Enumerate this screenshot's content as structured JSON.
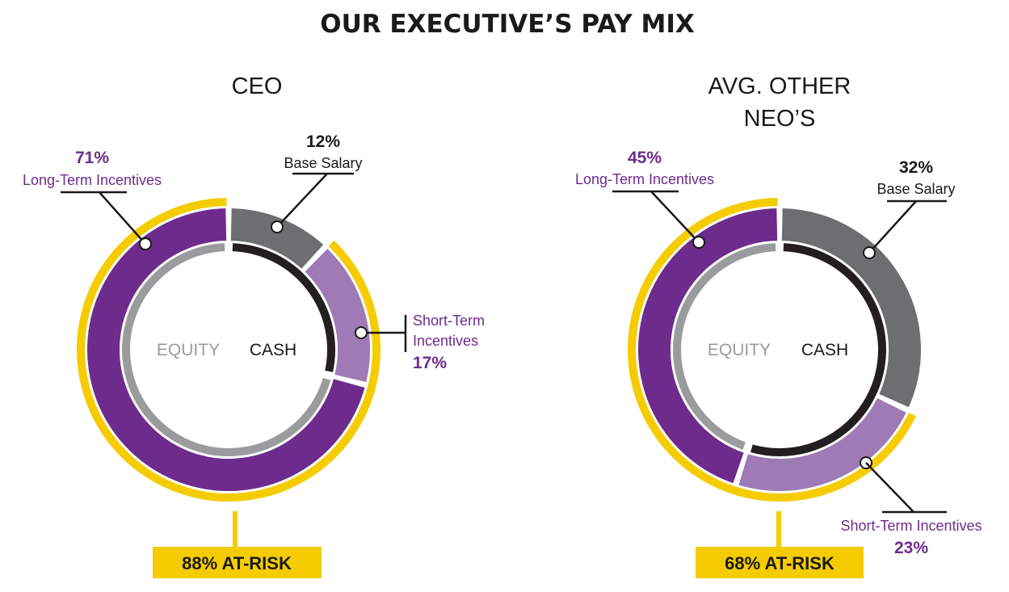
{
  "title": "OUR EXECUTIVE’S PAY MIX",
  "colors": {
    "ltiPurple": "#6d2c8c",
    "stiPurple": "#9e7bb5",
    "baseGray": "#6d6e70",
    "equityGray": "#9a9b9d",
    "cashBlack": "#231f20",
    "atRiskYellow": "#f5cc00",
    "labelPurple": "#6d2c8c"
  },
  "chart_data": [
    {
      "type": "pie",
      "title": "CEO",
      "outer_ring": [
        {
          "label": "Base Salary",
          "value": 12,
          "display": "12%"
        },
        {
          "label_lines": [
            "Short-Term",
            "Incentives"
          ],
          "value": 17,
          "display": "17%"
        },
        {
          "label": "Long-Term Incentives",
          "value": 71,
          "display": "71%"
        }
      ],
      "inner_ring": [
        {
          "label": "CASH",
          "value": 29
        },
        {
          "label": "EQUITY",
          "value": 71
        }
      ],
      "at_risk": {
        "value": 88,
        "label": "88% AT-RISK"
      }
    },
    {
      "type": "pie",
      "title_lines": [
        "AVG. OTHER",
        "NEO’S"
      ],
      "outer_ring": [
        {
          "label": "Base Salary",
          "value": 32,
          "display": "32%"
        },
        {
          "label": "Short-Term Incentives",
          "value": 23,
          "display": "23%"
        },
        {
          "label": "Long-Term Incentives",
          "value": 45,
          "display": "45%"
        }
      ],
      "inner_ring": [
        {
          "label": "CASH",
          "value": 55
        },
        {
          "label": "EQUITY",
          "value": 45
        }
      ],
      "at_risk": {
        "value": 68,
        "label": "68% AT-RISK"
      }
    }
  ]
}
